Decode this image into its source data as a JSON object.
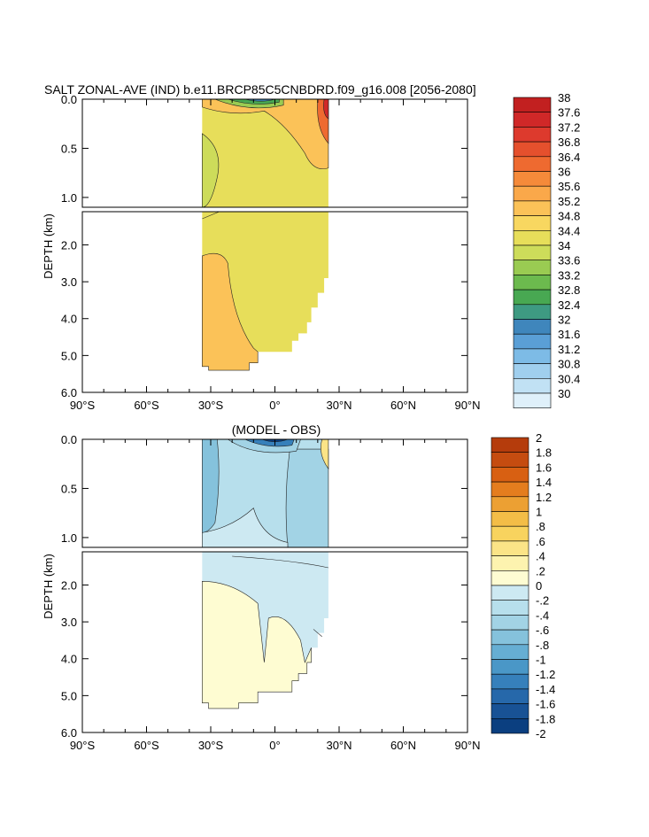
{
  "chart_data": [
    {
      "type": "contour",
      "title": "SALT ZONAL-AVE (IND) b.e11.BRCP85C5CNBDRD.f09_g16.008 [2056-2080]",
      "ylabel": "DEPTH (km)",
      "x_ticks": [
        {
          "value": -90,
          "label": "90°S"
        },
        {
          "value": -60,
          "label": "60°S"
        },
        {
          "value": -30,
          "label": "30°S"
        },
        {
          "value": 0,
          "label": "0°"
        },
        {
          "value": 30,
          "label": "30°N"
        },
        {
          "value": 60,
          "label": "60°N"
        },
        {
          "value": 90,
          "label": "90°N"
        }
      ],
      "y_ticks_upper": [
        "0.0",
        "0.5",
        "1.0"
      ],
      "y_ticks_lower": [
        "2.0",
        "3.0",
        "4.0",
        "5.0",
        "6.0"
      ],
      "colorbar": {
        "labels": [
          "38",
          "37.6",
          "37.2",
          "36.8",
          "36.4",
          "36",
          "35.6",
          "35.2",
          "34.8",
          "34.4",
          "34",
          "33.6",
          "33.2",
          "32.8",
          "32.4",
          "32",
          "31.6",
          "31.2",
          "30.8",
          "30.4",
          "30"
        ],
        "colors": [
          "#c22020",
          "#d02828",
          "#dd3a2d",
          "#e5502d",
          "#ee6a30",
          "#f58a3a",
          "#faa84a",
          "#fbc258",
          "#f8d760",
          "#e7de5a",
          "#cddc5a",
          "#9acb52",
          "#6cba4e",
          "#48a852",
          "#3e9a82",
          "#3f86bc",
          "#5a9fd6",
          "#7dbbe6",
          "#a0cfee",
          "#c1e1f4",
          "#dff0fa"
        ]
      }
    },
    {
      "type": "contour",
      "title": "(MODEL - OBS)",
      "ylabel": "DEPTH (km)",
      "x_ticks": [
        {
          "value": -90,
          "label": "90°S"
        },
        {
          "value": -60,
          "label": "60°S"
        },
        {
          "value": -30,
          "label": "30°S"
        },
        {
          "value": 0,
          "label": "0°"
        },
        {
          "value": 30,
          "label": "30°N"
        },
        {
          "value": 60,
          "label": "60°N"
        },
        {
          "value": 90,
          "label": "90°N"
        }
      ],
      "y_ticks_upper": [
        "0.0",
        "0.5",
        "1.0"
      ],
      "y_ticks_lower": [
        "2.0",
        "3.0",
        "4.0",
        "5.0",
        "6.0"
      ],
      "colorbar": {
        "labels": [
          "2",
          "1.8",
          "1.6",
          "1.4",
          "1.2",
          "1",
          ".8",
          ".6",
          ".4",
          ".2",
          "0",
          "-.2",
          "-.4",
          "-.6",
          "-.8",
          "-1",
          "-1.2",
          "-1.4",
          "-1.6",
          "-1.8",
          "-2"
        ],
        "colors": [
          "#b53c0c",
          "#c54c10",
          "#d86012",
          "#e47d1e",
          "#eca033",
          "#f3bd47",
          "#f8d35e",
          "#fbe487",
          "#fdf3af",
          "#fefcd2",
          "#cde9f2",
          "#b7dfec",
          "#a2d3e5",
          "#85c2dc",
          "#66aed3",
          "#4a97c7",
          "#3680bb",
          "#2668aa",
          "#185295",
          "#0b3f80"
        ]
      }
    }
  ]
}
